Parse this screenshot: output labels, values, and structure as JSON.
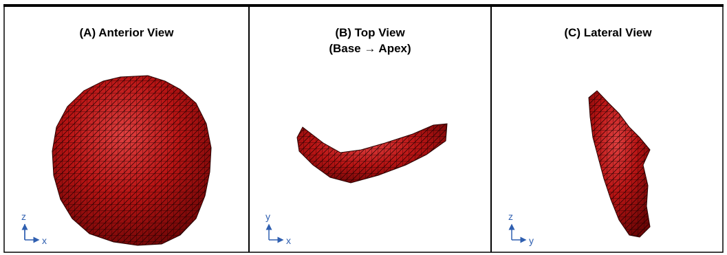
{
  "panels": [
    {
      "title": [
        "(A) Anterior View"
      ],
      "axis_vertical": "z",
      "axis_horizontal": "x"
    },
    {
      "title": [
        "(B) Top View",
        "(Base → Apex)"
      ],
      "axis_vertical": "y",
      "axis_horizontal": "x"
    },
    {
      "title": [
        "(C) Lateral View"
      ],
      "axis_vertical": "z",
      "axis_horizontal": "y"
    }
  ]
}
